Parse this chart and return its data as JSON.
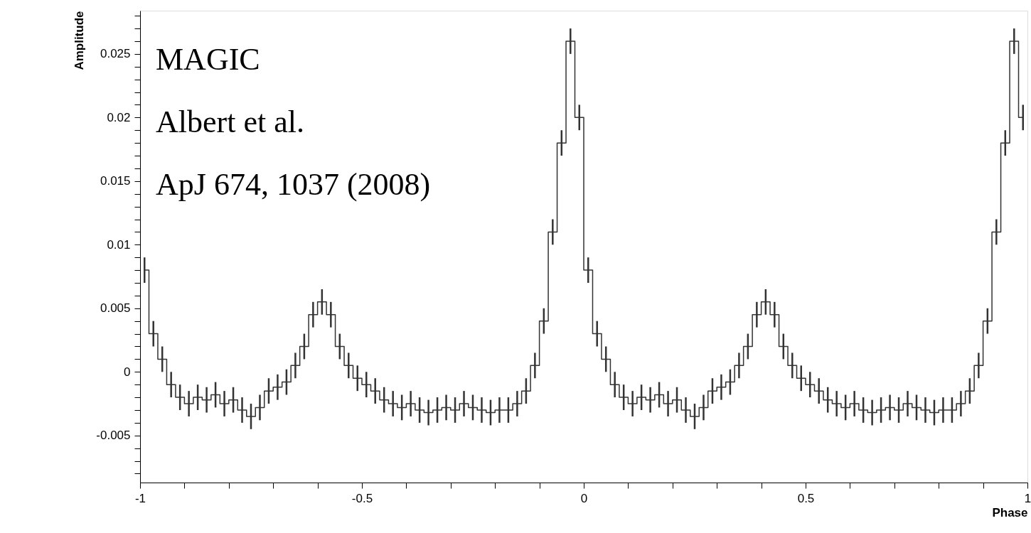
{
  "chart_data": {
    "type": "step",
    "xlabel": "Phase",
    "ylabel": "Amplitude",
    "annotations": [
      "MAGIC",
      "Albert et al.",
      "ApJ 674, 1037 (2008)"
    ],
    "x": [
      -0.99,
      -0.97,
      -0.95,
      -0.93,
      -0.91,
      -0.89,
      -0.87,
      -0.85,
      -0.83,
      -0.81,
      -0.79,
      -0.77,
      -0.75,
      -0.73,
      -0.71,
      -0.69,
      -0.67,
      -0.65,
      -0.63,
      -0.61,
      -0.59,
      -0.57,
      -0.55,
      -0.53,
      -0.51,
      -0.49,
      -0.47,
      -0.45,
      -0.43,
      -0.41,
      -0.39,
      -0.37,
      -0.35,
      -0.33,
      -0.31,
      -0.29,
      -0.27,
      -0.25,
      -0.23,
      -0.21,
      -0.19,
      -0.17,
      -0.15,
      -0.13,
      -0.11,
      -0.09,
      -0.07,
      -0.05,
      -0.03,
      -0.01,
      0.01,
      0.03,
      0.05,
      0.07,
      0.09,
      0.11,
      0.13,
      0.15,
      0.17,
      0.19,
      0.21,
      0.23,
      0.25,
      0.27,
      0.29,
      0.31,
      0.33,
      0.35,
      0.37,
      0.39,
      0.41,
      0.43,
      0.45,
      0.47,
      0.49,
      0.51,
      0.53,
      0.55,
      0.57,
      0.59,
      0.61,
      0.63,
      0.65,
      0.67,
      0.69,
      0.71,
      0.73,
      0.75,
      0.77,
      0.79,
      0.81,
      0.83,
      0.85,
      0.87,
      0.89,
      0.91,
      0.93,
      0.95,
      0.97,
      0.99
    ],
    "series": [
      {
        "color": "#333333",
        "marker": "none",
        "values": [
          0.008,
          0.003,
          0.001,
          -0.001,
          -0.002,
          -0.0025,
          -0.002,
          -0.0022,
          -0.0018,
          -0.0025,
          -0.0022,
          -0.003,
          -0.0035,
          -0.0028,
          -0.0015,
          -0.0012,
          -0.0008,
          0.0005,
          0.002,
          0.0045,
          0.0055,
          0.0045,
          0.002,
          0.0005,
          -0.0005,
          -0.001,
          -0.0015,
          -0.0022,
          -0.0025,
          -0.0028,
          -0.0025,
          -0.003,
          -0.0032,
          -0.003,
          -0.0028,
          -0.003,
          -0.0025,
          -0.0028,
          -0.003,
          -0.0032,
          -0.003,
          -0.003,
          -0.0025,
          -0.0015,
          0.0005,
          0.004,
          0.011,
          0.018,
          0.026,
          0.02,
          0.008,
          0.003,
          0.001,
          -0.001,
          -0.002,
          -0.0025,
          -0.002,
          -0.0022,
          -0.0018,
          -0.0025,
          -0.0022,
          -0.003,
          -0.0035,
          -0.0028,
          -0.0015,
          -0.0012,
          -0.0008,
          0.0005,
          0.002,
          0.0045,
          0.0055,
          0.0045,
          0.002,
          0.0005,
          -0.0005,
          -0.001,
          -0.0015,
          -0.0022,
          -0.0025,
          -0.0028,
          -0.0025,
          -0.003,
          -0.0032,
          -0.003,
          -0.0028,
          -0.003,
          -0.0025,
          -0.0028,
          -0.003,
          -0.0032,
          -0.003,
          -0.003,
          -0.0025,
          -0.0015,
          0.0005,
          0.004,
          0.011,
          0.018,
          0.026,
          0.02
        ],
        "errors": [
          0.001,
          0.001,
          0.001,
          0.001,
          0.001,
          0.001,
          0.001,
          0.001,
          0.001,
          0.001,
          0.001,
          0.001,
          0.001,
          0.001,
          0.001,
          0.001,
          0.001,
          0.001,
          0.001,
          0.001,
          0.001,
          0.001,
          0.001,
          0.001,
          0.001,
          0.001,
          0.001,
          0.001,
          0.001,
          0.001,
          0.001,
          0.001,
          0.001,
          0.001,
          0.001,
          0.001,
          0.001,
          0.001,
          0.001,
          0.001,
          0.001,
          0.001,
          0.001,
          0.001,
          0.001,
          0.001,
          0.001,
          0.001,
          0.001,
          0.001,
          0.001,
          0.001,
          0.001,
          0.001,
          0.001,
          0.001,
          0.001,
          0.001,
          0.001,
          0.001,
          0.001,
          0.001,
          0.001,
          0.001,
          0.001,
          0.001,
          0.001,
          0.001,
          0.001,
          0.001,
          0.001,
          0.001,
          0.001,
          0.001,
          0.001,
          0.001,
          0.001,
          0.001,
          0.001,
          0.001,
          0.001,
          0.001,
          0.001,
          0.001,
          0.001,
          0.001,
          0.001,
          0.001,
          0.001,
          0.001,
          0.001,
          0.001,
          0.001,
          0.001,
          0.001,
          0.001,
          0.001,
          0.001,
          0.001,
          0.001
        ]
      }
    ],
    "xlim": [
      -1,
      1
    ],
    "ylim": [
      -0.0087,
      0.0284
    ],
    "xticks": [
      -1,
      {
        "value": -0.9,
        "label": null
      },
      {
        "value": -0.8,
        "label": null
      },
      {
        "value": -0.7,
        "label": null
      },
      {
        "value": -0.6,
        "label": null
      },
      -0.5,
      {
        "value": -0.4,
        "label": null
      },
      {
        "value": -0.3,
        "label": null
      },
      {
        "value": -0.2,
        "label": null
      },
      {
        "value": -0.1,
        "label": null
      },
      0,
      {
        "value": 0.1,
        "label": null
      },
      {
        "value": 0.2,
        "label": null
      },
      {
        "value": 0.3,
        "label": null
      },
      {
        "value": 0.4,
        "label": null
      },
      0.5,
      {
        "value": 0.6,
        "label": null
      },
      {
        "value": 0.7,
        "label": null
      },
      {
        "value": 0.8,
        "label": null
      },
      {
        "value": 0.9,
        "label": null
      },
      1
    ],
    "yticks": [
      {
        "value": -0.008,
        "label": null
      },
      {
        "value": -0.007,
        "label": null
      },
      {
        "value": -0.006,
        "label": null
      },
      -0.005,
      {
        "value": -0.004,
        "label": null
      },
      {
        "value": -0.003,
        "label": null
      },
      {
        "value": -0.002,
        "label": null
      },
      {
        "value": -0.001,
        "label": null
      },
      0,
      {
        "value": 0.001,
        "label": null
      },
      {
        "value": 0.002,
        "label": null
      },
      {
        "value": 0.003,
        "label": null
      },
      {
        "value": 0.004,
        "label": null
      },
      0.005,
      {
        "value": 0.006,
        "label": null
      },
      {
        "value": 0.007,
        "label": null
      },
      {
        "value": 0.008,
        "label": null
      },
      {
        "value": 0.009,
        "label": null
      },
      0.01,
      {
        "value": 0.011,
        "label": null
      },
      {
        "value": 0.012,
        "label": null
      },
      {
        "value": 0.013,
        "label": null
      },
      {
        "value": 0.014,
        "label": null
      },
      0.015,
      {
        "value": 0.016,
        "label": null
      },
      {
        "value": 0.017,
        "label": null
      },
      {
        "value": 0.018,
        "label": null
      },
      {
        "value": 0.019,
        "label": null
      },
      0.02,
      {
        "value": 0.021,
        "label": null
      },
      {
        "value": 0.022,
        "label": null
      },
      {
        "value": 0.023,
        "label": null
      },
      {
        "value": 0.024,
        "label": null
      },
      0.025,
      {
        "value": 0.026,
        "label": null
      },
      {
        "value": 0.027,
        "label": null
      },
      {
        "value": 0.028,
        "label": null
      }
    ],
    "grid": false,
    "line_style": "solid"
  }
}
